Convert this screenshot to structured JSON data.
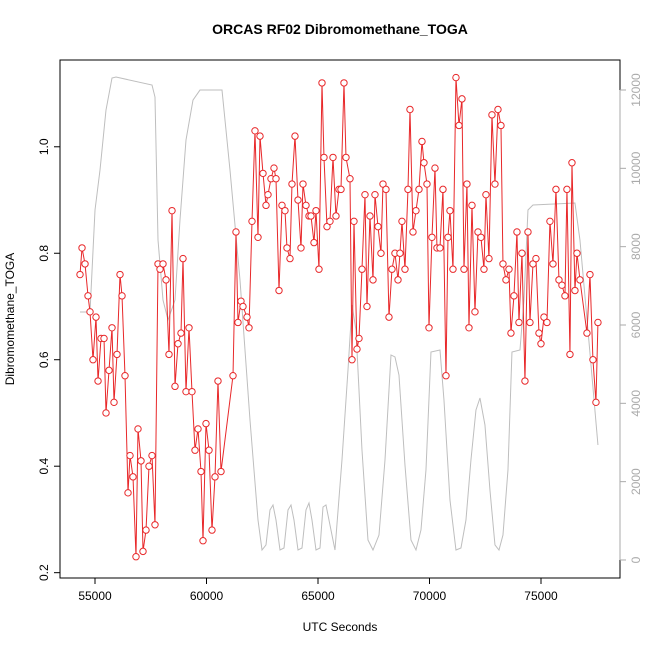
{
  "chart_data": {
    "type": "line",
    "title": "ORCAS RF02 Dibromomethane_TOGA",
    "xlabel": "UTC Seconds",
    "ylabel": "Dibromomethane_TOGA",
    "xlim": [
      53430,
      78543
    ],
    "xticks": [
      55000,
      60000,
      65000,
      70000,
      75000
    ],
    "ylim": [
      0.19,
      1.163
    ],
    "yticks": [
      0.2,
      0.4,
      0.6,
      0.8,
      {
        "value": 1,
        "label": "1.0"
      }
    ],
    "y2lim": [
      -460,
      12766
    ],
    "y2ticks": [
      0,
      2000,
      4000,
      6000,
      8000,
      10000,
      12000
    ],
    "y2color": "#aaaaaa",
    "series": [
      {
        "color": "#e8282a",
        "markers": true,
        "x": [
          54327,
          54417,
          54552,
          54686,
          54776,
          54910,
          55045,
          55135,
          55269,
          55404,
          55493,
          55628,
          55762,
          55852,
          55986,
          56121,
          56211,
          56345,
          56480,
          56569,
          56704,
          56838,
          56928,
          57063,
          57152,
          57287,
          57421,
          57556,
          57690,
          57825,
          57915,
          58049,
          58184,
          58318,
          58453,
          58587,
          58722,
          58856,
          58946,
          59080,
          59215,
          59349,
          59484,
          59619,
          59753,
          59843,
          59977,
          60112,
          60246,
          60381,
          60515,
          60650,
          61188,
          61322,
          61412,
          61547,
          61636,
          61816,
          61905,
          62040,
          62174,
          62309,
          62399,
          62533,
          62668,
          62757,
          62892,
          63026,
          63116,
          63251,
          63385,
          63520,
          63609,
          63744,
          63833,
          63968,
          64103,
          64237,
          64327,
          64461,
          64596,
          64685,
          64820,
          64910,
          65044,
          65179,
          65268,
          65403,
          65537,
          65672,
          65806,
          65941,
          66031,
          66165,
          66255,
          66434,
          66524,
          66614,
          66748,
          66838,
          66972,
          67107,
          67196,
          67331,
          67466,
          67555,
          67690,
          67824,
          67914,
          68048,
          68183,
          68317,
          68452,
          68587,
          68676,
          68766,
          68900,
          69035,
          69125,
          69259,
          69394,
          69528,
          69663,
          69752,
          69887,
          69977,
          70111,
          70246,
          70335,
          70470,
          70604,
          70739,
          70829,
          70918,
          71053,
          71187,
          71322,
          71456,
          71546,
          71680,
          71770,
          71905,
          72039,
          72174,
          72308,
          72443,
          72532,
          72667,
          72801,
          72936,
          73071,
          73205,
          73295,
          73429,
          73564,
          73653,
          73788,
          73922,
          74012,
          74147,
          74281,
          74416,
          74505,
          74640,
          74774,
          74909,
          74999,
          75133,
          75268,
          75402,
          75537,
          75671,
          75806,
          75940,
          76075,
          76164,
          76299,
          76389,
          76523,
          76613,
          76747,
          77061,
          77196,
          77330,
          77465,
          77554
        ],
        "values": [
          0.76,
          0.81,
          0.78,
          0.72,
          0.69,
          0.6,
          0.68,
          0.56,
          0.64,
          0.64,
          0.5,
          0.58,
          0.66,
          0.52,
          0.61,
          0.76,
          0.72,
          0.57,
          0.35,
          0.42,
          0.38,
          0.23,
          0.47,
          0.41,
          0.24,
          0.28,
          0.4,
          0.42,
          0.29,
          0.78,
          0.77,
          0.78,
          0.75,
          0.61,
          0.88,
          0.55,
          0.63,
          0.65,
          0.79,
          0.54,
          0.66,
          0.54,
          0.43,
          0.47,
          0.39,
          0.26,
          0.48,
          0.43,
          0.28,
          0.38,
          0.56,
          0.39,
          0.57,
          0.84,
          0.67,
          0.71,
          0.7,
          0.68,
          0.66,
          0.86,
          1.03,
          0.83,
          1.02,
          0.95,
          0.89,
          0.91,
          0.94,
          0.96,
          0.94,
          0.73,
          0.89,
          0.88,
          0.81,
          0.79,
          0.93,
          1.02,
          0.9,
          0.81,
          0.93,
          0.89,
          0.87,
          0.87,
          0.82,
          0.88,
          0.77,
          1.12,
          0.98,
          0.85,
          0.86,
          0.98,
          0.87,
          0.92,
          0.92,
          1.12,
          0.98,
          0.94,
          0.6,
          0.86,
          0.62,
          0.64,
          0.77,
          0.91,
          0.7,
          0.87,
          0.75,
          0.91,
          0.85,
          0.8,
          0.93,
          0.92,
          0.68,
          0.77,
          0.8,
          0.75,
          0.8,
          0.86,
          0.77,
          0.92,
          1.07,
          0.84,
          0.88,
          0.92,
          1.01,
          0.97,
          0.93,
          0.66,
          0.83,
          0.96,
          0.81,
          0.81,
          0.92,
          0.57,
          0.83,
          0.88,
          0.77,
          1.13,
          1.04,
          1.09,
          0.77,
          0.93,
          0.66,
          0.89,
          0.69,
          0.84,
          0.83,
          0.77,
          0.91,
          0.79,
          1.06,
          0.93,
          1.07,
          1.04,
          0.78,
          0.75,
          0.77,
          0.65,
          0.72,
          0.84,
          0.67,
          0.8,
          0.56,
          0.84,
          0.67,
          0.78,
          0.79,
          0.65,
          0.63,
          0.68,
          0.67,
          0.86,
          0.78,
          0.92,
          0.75,
          0.74,
          0.72,
          0.92,
          0.61,
          0.97,
          0.73,
          0.8,
          0.75,
          0.65,
          0.76,
          0.6,
          0.52,
          0.67
        ]
      },
      {
        "color": "#bebebe",
        "axis": "y2",
        "markers": false,
        "x": [
          54327,
          54776,
          55000,
          55224,
          55493,
          55762,
          55942,
          57556,
          57690,
          57825,
          58049,
          58273,
          58587,
          58811,
          59080,
          59394,
          59708,
          60695,
          61053,
          61502,
          61950,
          62309,
          62489,
          62668,
          62847,
          62982,
          63116,
          63296,
          63475,
          63654,
          63789,
          63923,
          64103,
          64282,
          64461,
          64596,
          64730,
          64910,
          65089,
          65224,
          65358,
          65537,
          65761,
          66075,
          66345,
          66524,
          66703,
          66972,
          67241,
          67466,
          67735,
          68004,
          68273,
          68452,
          68631,
          68900,
          69169,
          69394,
          69618,
          69842,
          70066,
          70470,
          70649,
          70918,
          71187,
          71411,
          71635,
          71859,
          72084,
          72263,
          72487,
          72711,
          72936,
          73116,
          73295,
          73519,
          73698,
          74057,
          74236,
          74416,
          74640,
          76523,
          76747,
          77106,
          77554
        ],
        "values": [
          6331,
          6331,
          8936,
          9957,
          11489,
          12305,
          12331,
          12127,
          11820,
          8170,
          6638,
          6127,
          6638,
          8680,
          10723,
          11744,
          11999,
          11999,
          9957,
          7148,
          3574,
          1021,
          255,
          383,
          1277,
          1404,
          1021,
          255,
          306,
          1277,
          1404,
          1021,
          255,
          306,
          1277,
          1455,
          1021,
          255,
          306,
          1353,
          1404,
          894,
          255,
          2553,
          4851,
          6510,
          5872,
          2808,
          511,
          255,
          638,
          2553,
          5234,
          5183,
          4723,
          2425,
          511,
          255,
          766,
          2298,
          5310,
          5361,
          4085,
          1532,
          255,
          306,
          1021,
          2553,
          3830,
          4136,
          3447,
          1787,
          383,
          255,
          638,
          2298,
          5310,
          5361,
          6638,
          8936,
          9063,
          9114,
          8170,
          5872,
          2936
        ]
      }
    ]
  }
}
